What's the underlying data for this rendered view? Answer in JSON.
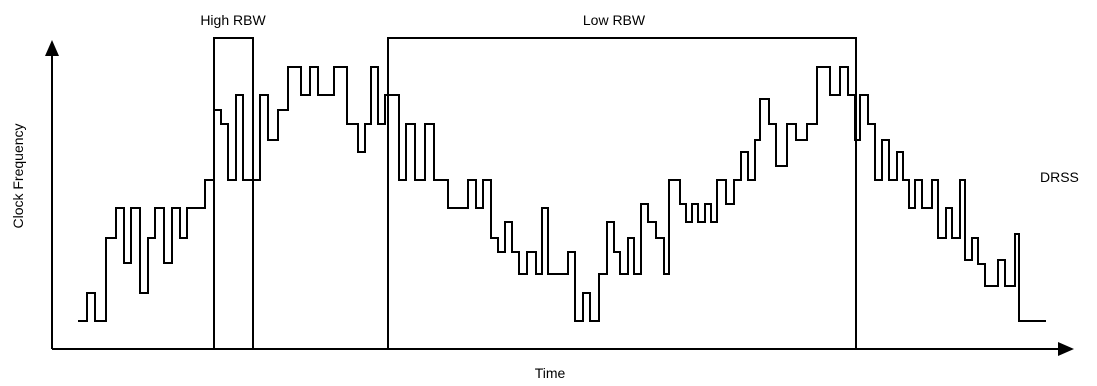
{
  "labels": {
    "y_axis": "Clock Frequency",
    "x_axis": "Time",
    "high_rbw": "High RBW",
    "low_rbw": "Low RBW",
    "drss": "DRSS"
  },
  "colors": {
    "line": "#000000",
    "background": "#ffffff"
  }
}
